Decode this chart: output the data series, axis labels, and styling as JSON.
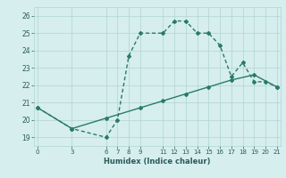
{
  "xlabel": "Humidex (Indice chaleur)",
  "line1_x": [
    0,
    3,
    6,
    7,
    8,
    9,
    11,
    12,
    13,
    14,
    15,
    16,
    17,
    18,
    19,
    20,
    21
  ],
  "line1_y": [
    20.7,
    19.5,
    19.0,
    20.0,
    23.7,
    25.0,
    25.0,
    25.7,
    25.7,
    25.0,
    25.0,
    24.3,
    22.5,
    23.3,
    22.2,
    22.2,
    21.9
  ],
  "line2_x": [
    0,
    3,
    6,
    9,
    11,
    13,
    15,
    17,
    19,
    21
  ],
  "line2_y": [
    20.7,
    19.5,
    20.1,
    20.7,
    21.1,
    21.5,
    21.9,
    22.3,
    22.6,
    21.9
  ],
  "line_color": "#2a7a6a",
  "bg_color": "#d6eeee",
  "grid_color": "#b0d4d4",
  "xlim": [
    -0.3,
    21.3
  ],
  "ylim": [
    18.5,
    26.5
  ],
  "xticks": [
    0,
    3,
    6,
    7,
    8,
    9,
    11,
    12,
    13,
    14,
    15,
    16,
    17,
    18,
    19,
    20,
    21
  ],
  "yticks": [
    19,
    20,
    21,
    22,
    23,
    24,
    25,
    26
  ],
  "marker": "D",
  "markersize": 2.0,
  "linewidth": 1.0
}
